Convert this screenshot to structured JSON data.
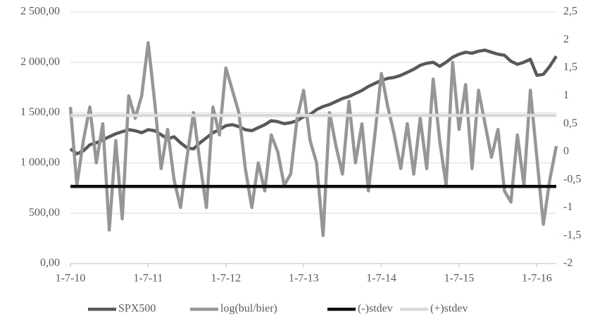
{
  "chart_data": {
    "type": "line",
    "categories": [
      "1-7-10",
      null,
      null,
      null,
      null,
      null,
      null,
      null,
      null,
      null,
      null,
      null,
      "1-7-11",
      null,
      null,
      null,
      null,
      null,
      null,
      null,
      null,
      null,
      null,
      null,
      "1-7-12",
      null,
      null,
      null,
      null,
      null,
      null,
      null,
      null,
      null,
      null,
      null,
      "1-7-13",
      null,
      null,
      null,
      null,
      null,
      null,
      null,
      null,
      null,
      null,
      null,
      "1-7-14",
      null,
      null,
      null,
      null,
      null,
      null,
      null,
      null,
      null,
      null,
      null,
      "1-7-15",
      null,
      null,
      null,
      null,
      null,
      null,
      null,
      null,
      null,
      null,
      null,
      "1-7-16",
      null,
      null,
      null
    ],
    "series": [
      {
        "name": "SPX500",
        "color": "#595959",
        "axis": "y",
        "values": [
          1140,
          1090,
          1120,
          1180,
          1200,
          1230,
          1260,
          1290,
          1310,
          1330,
          1320,
          1300,
          1330,
          1320,
          1280,
          1240,
          1260,
          1200,
          1150,
          1140,
          1200,
          1250,
          1300,
          1330,
          1370,
          1380,
          1360,
          1330,
          1320,
          1350,
          1380,
          1420,
          1410,
          1390,
          1400,
          1420,
          1460,
          1480,
          1530,
          1560,
          1580,
          1610,
          1640,
          1660,
          1690,
          1720,
          1760,
          1790,
          1820,
          1840,
          1850,
          1870,
          1900,
          1930,
          1970,
          1990,
          2000,
          1960,
          2000,
          2050,
          2080,
          2100,
          2090,
          2110,
          2120,
          2100,
          2080,
          2070,
          2010,
          1980,
          2000,
          2030,
          1870,
          1880,
          1960,
          2060
        ]
      },
      {
        "name": "log(bul/bier)",
        "color": "#969696",
        "axis": "y2",
        "values": [
          0.8,
          -0.6,
          0.2,
          0.8,
          -0.2,
          0.5,
          -1.4,
          0.2,
          -1.2,
          1.0,
          0.6,
          1.0,
          1.95,
          0.9,
          -0.3,
          0.4,
          -0.5,
          -1.0,
          -0.1,
          0.7,
          -0.2,
          -1.0,
          0.8,
          0.3,
          1.5,
          1.1,
          0.7,
          -0.3,
          -1.0,
          -0.2,
          -0.7,
          0.3,
          0.0,
          -0.6,
          -0.4,
          0.6,
          1.1,
          0.2,
          -0.2,
          -1.5,
          0.7,
          0.1,
          -0.4,
          0.9,
          -0.2,
          0.5,
          -0.7,
          0.3,
          1.4,
          0.8,
          0.3,
          -0.3,
          0.5,
          -0.4,
          0.6,
          -0.3,
          1.3,
          0.2,
          -0.6,
          1.6,
          0.4,
          1.2,
          -0.3,
          1.1,
          0.5,
          -0.1,
          0.4,
          -0.7,
          -0.9,
          0.3,
          -0.6,
          1.1,
          -0.1,
          -1.3,
          -0.5,
          0.1
        ]
      },
      {
        "name": "(-)stdev",
        "color": "#0d0d0d",
        "axis": "y2",
        "values": [
          -0.62,
          -0.62,
          -0.62,
          -0.62,
          -0.62,
          -0.62,
          -0.62,
          -0.62,
          -0.62,
          -0.62,
          -0.62,
          -0.62,
          -0.62,
          -0.62,
          -0.62,
          -0.62,
          -0.62,
          -0.62,
          -0.62,
          -0.62,
          -0.62,
          -0.62,
          -0.62,
          -0.62,
          -0.62,
          -0.62,
          -0.62,
          -0.62,
          -0.62,
          -0.62,
          -0.62,
          -0.62,
          -0.62,
          -0.62,
          -0.62,
          -0.62,
          -0.62,
          -0.62,
          -0.62,
          -0.62,
          -0.62,
          -0.62,
          -0.62,
          -0.62,
          -0.62,
          -0.62,
          -0.62,
          -0.62,
          -0.62,
          -0.62,
          -0.62,
          -0.62,
          -0.62,
          -0.62,
          -0.62,
          -0.62,
          -0.62,
          -0.62,
          -0.62,
          -0.62,
          -0.62,
          -0.62,
          -0.62,
          -0.62,
          -0.62,
          -0.62,
          -0.62,
          -0.62,
          -0.62,
          -0.62,
          -0.62,
          -0.62,
          -0.62,
          -0.62,
          -0.62,
          -0.62
        ]
      },
      {
        "name": "(+)stdev",
        "color": "#d9d9d9",
        "axis": "y2",
        "values": [
          0.65,
          0.65,
          0.65,
          0.65,
          0.65,
          0.65,
          0.65,
          0.65,
          0.65,
          0.65,
          0.65,
          0.65,
          0.65,
          0.65,
          0.65,
          0.65,
          0.65,
          0.65,
          0.65,
          0.65,
          0.65,
          0.65,
          0.65,
          0.65,
          0.65,
          0.65,
          0.65,
          0.65,
          0.65,
          0.65,
          0.65,
          0.65,
          0.65,
          0.65,
          0.65,
          0.65,
          0.65,
          0.65,
          0.65,
          0.65,
          0.65,
          0.65,
          0.65,
          0.65,
          0.65,
          0.65,
          0.65,
          0.65,
          0.65,
          0.65,
          0.65,
          0.65,
          0.65,
          0.65,
          0.65,
          0.65,
          0.65,
          0.65,
          0.65,
          0.65,
          0.65,
          0.65,
          0.65,
          0.65,
          0.65,
          0.65,
          0.65,
          0.65,
          0.65,
          0.65,
          0.65,
          0.65,
          0.65,
          0.65,
          0.65,
          0.65
        ]
      }
    ],
    "ylim": [
      0,
      2500
    ],
    "yticks": [
      {
        "value": 0,
        "label": "0,00"
      },
      {
        "value": 500,
        "label": "500,00"
      },
      {
        "value": 1000,
        "label": "1 000,00"
      },
      {
        "value": 1500,
        "label": "1 500,00"
      },
      {
        "value": 2000,
        "label": "2 000,00"
      },
      {
        "value": 2500,
        "label": "2 500,00"
      }
    ],
    "y2lim": [
      -2,
      2.5
    ],
    "y2ticks": [
      -2,
      {
        "value": -1.5,
        "label": "-1,5"
      },
      -1,
      {
        "value": -0.5,
        "label": "-0,5"
      },
      0,
      {
        "value": 0.5,
        "label": "0,5"
      },
      1,
      {
        "value": 1.5,
        "label": "1,5"
      },
      2,
      {
        "value": 2.5,
        "label": "2,5"
      }
    ],
    "grid": true,
    "legend": "bottom"
  }
}
